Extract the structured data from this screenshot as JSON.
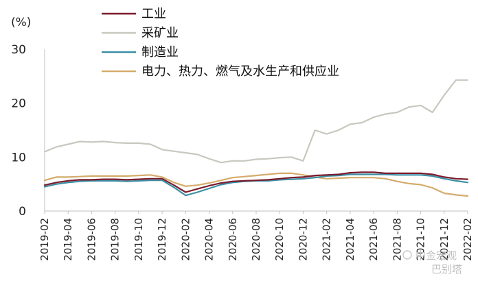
{
  "chart_data": {
    "type": "line",
    "unit_label": "(%)",
    "ylim": [
      0,
      30
    ],
    "yticks": [
      0,
      10,
      20,
      30
    ],
    "grid": false,
    "legend_position": "top",
    "x": [
      "2019-02",
      "2019-03",
      "2019-04",
      "2019-05",
      "2019-06",
      "2019-07",
      "2019-08",
      "2019-09",
      "2019-10",
      "2019-11",
      "2019-12",
      "2020-01",
      "2020-02",
      "2020-03",
      "2020-04",
      "2020-05",
      "2020-06",
      "2020-07",
      "2020-08",
      "2020-09",
      "2020-10",
      "2020-11",
      "2020-12",
      "2021-01",
      "2021-02",
      "2021-03",
      "2021-04",
      "2021-05",
      "2021-06",
      "2021-07",
      "2021-08",
      "2021-09",
      "2021-10",
      "2021-11",
      "2021-12",
      "2022-01",
      "2022-02"
    ],
    "xtick_labels": [
      "2019-02",
      "2019-04",
      "2019-06",
      "2019-08",
      "2019-10",
      "2019-12",
      "2020-02",
      "2020-04",
      "2020-06",
      "2020-08",
      "2020-10",
      "2020-12",
      "2021-02",
      "2021-04",
      "2021-06",
      "2021-08",
      "2021-10",
      "2021-12",
      "2022-02"
    ],
    "series": [
      {
        "name": "工业",
        "color": "#7b1c2c",
        "values": [
          4.8,
          5.3,
          5.6,
          5.8,
          5.8,
          5.9,
          5.9,
          5.8,
          5.9,
          6.0,
          6.0,
          4.8,
          3.5,
          4.1,
          4.7,
          5.2,
          5.5,
          5.6,
          5.7,
          5.8,
          6.0,
          6.2,
          6.3,
          6.6,
          6.7,
          6.8,
          7.1,
          7.2,
          7.2,
          7.0,
          7.0,
          7.0,
          7.0,
          6.8,
          6.3,
          6.0,
          5.9
        ]
      },
      {
        "name": "采矿业",
        "color": "#c5c9be",
        "values": [
          11.0,
          11.9,
          12.4,
          12.9,
          12.8,
          12.9,
          12.7,
          12.6,
          12.6,
          12.4,
          11.4,
          11.1,
          10.8,
          10.5,
          9.7,
          9.0,
          9.3,
          9.3,
          9.6,
          9.7,
          9.9,
          10.0,
          9.3,
          15.0,
          14.3,
          15.0,
          16.1,
          16.4,
          17.4,
          18.0,
          18.3,
          19.3,
          19.6,
          18.3,
          21.5,
          24.3,
          24.3
        ]
      },
      {
        "name": "制造业",
        "color": "#3b8ea5",
        "values": [
          4.5,
          5.0,
          5.3,
          5.5,
          5.6,
          5.6,
          5.6,
          5.5,
          5.6,
          5.7,
          5.7,
          4.4,
          2.9,
          3.5,
          4.2,
          4.9,
          5.3,
          5.5,
          5.6,
          5.6,
          5.8,
          5.9,
          6.0,
          6.2,
          6.5,
          6.6,
          6.8,
          6.8,
          6.8,
          6.8,
          6.7,
          6.7,
          6.7,
          6.5,
          6.0,
          5.6,
          5.3
        ]
      },
      {
        "name": "电力、热力、燃气及水生产和供应业",
        "color": "#d4ab6b",
        "values": [
          5.7,
          6.3,
          6.3,
          6.4,
          6.5,
          6.5,
          6.5,
          6.5,
          6.6,
          6.7,
          6.3,
          5.3,
          4.6,
          4.8,
          5.2,
          5.7,
          6.2,
          6.4,
          6.6,
          6.8,
          7.0,
          7.0,
          6.7,
          6.3,
          6.0,
          6.1,
          6.2,
          6.2,
          6.2,
          6.0,
          5.5,
          5.1,
          4.9,
          4.3,
          3.3,
          3.0,
          2.8
        ]
      }
    ]
  },
  "watermark": {
    "line1": "中金宏观",
    "line2": "巴别塔"
  }
}
